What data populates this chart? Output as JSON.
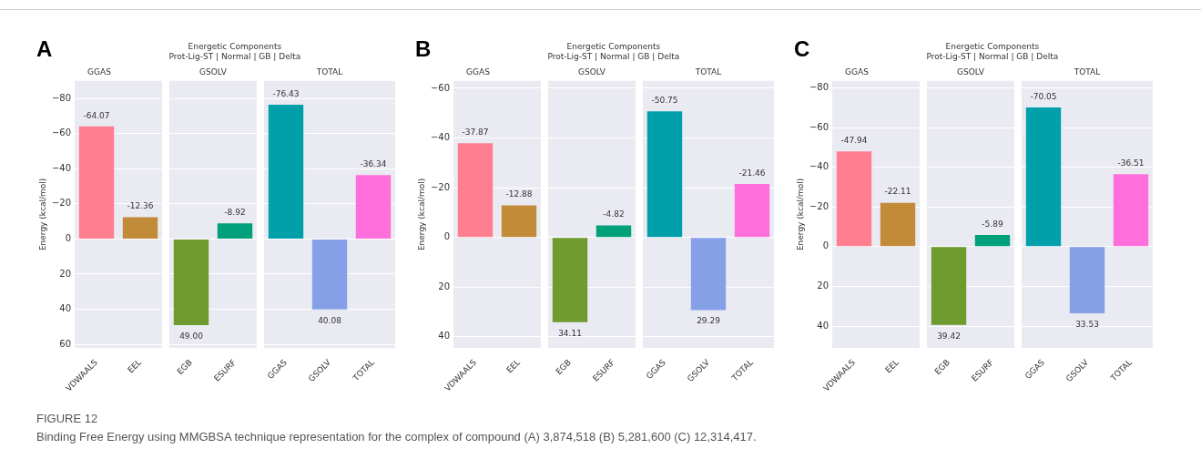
{
  "chart_data": [
    {
      "type": "bar",
      "title": "GGAS",
      "annotations": [
        "A",
        "FIGURE 12",
        "Binding Free Energy using MMGBSA technique representation for the complex of compound (A) 3,874,518 (B) 5,281,600 (C) 12,314,417."
      ],
      "ylabel": "Energy (kcal/mol)",
      "categories": [
        "VDWAALS",
        "EEL"
      ],
      "values": [
        -64.07,
        -12.36
      ],
      "value_labels": [
        "-64.07",
        "-12.36"
      ],
      "colors": [
        "#ff7f91",
        "#c28b39"
      ],
      "ylim": [
        62,
        -90
      ],
      "yticks": [
        -80,
        -60,
        -40,
        -20,
        0,
        20,
        40,
        60
      ],
      "grid": "y"
    },
    {
      "type": "bar",
      "title": "GSOLV",
      "subtitle": "Energetic Components\nProt-Lig-ST | Normal | GB | Delta",
      "categories": [
        "EGB",
        "ESURF"
      ],
      "values": [
        49.0,
        -8.92
      ],
      "value_labels": [
        "49.00",
        "-8.92"
      ],
      "colors": [
        "#6f9a2e",
        "#00a07a"
      ],
      "ylim": [
        62,
        -90
      ],
      "yticks": [
        -80,
        -60,
        -40,
        -20,
        0,
        20,
        40,
        60
      ],
      "grid": "y",
      "tick_labels": "x"
    },
    {
      "type": "bar",
      "title": "TOTAL",
      "categories": [
        "GGAS",
        "GSOLV",
        "TOTAL"
      ],
      "values": [
        -76.43,
        40.08,
        -36.34
      ],
      "value_labels": [
        "-76.43",
        "40.08",
        "-36.34"
      ],
      "colors": [
        "#00a0ab",
        "#86a0e8",
        "#ff6fdc"
      ],
      "ylim": [
        62,
        -90
      ],
      "yticks": [
        -80,
        -60,
        -40,
        -20,
        0,
        20,
        40,
        60
      ],
      "grid": "y",
      "tick_labels": "x"
    },
    {
      "type": "bar",
      "title": "GGAS",
      "annotations": [
        "B"
      ],
      "ylabel": "Energy (kcal/mol)",
      "categories": [
        "VDWAALS",
        "EEL"
      ],
      "values": [
        -37.87,
        -12.88
      ],
      "value_labels": [
        "-37.87",
        "-12.88"
      ],
      "colors": [
        "#ff7f91",
        "#c28b39"
      ],
      "ylim": [
        44.5,
        -63
      ],
      "yticks": [
        -60,
        -40,
        -20,
        0,
        20,
        40
      ],
      "grid": "y"
    },
    {
      "type": "bar",
      "title": "GSOLV",
      "subtitle": "Energetic Components\nProt-Lig-ST | Normal | GB | Delta",
      "categories": [
        "EGB",
        "ESURF"
      ],
      "values": [
        34.11,
        -4.82
      ],
      "value_labels": [
        "34.11",
        "-4.82"
      ],
      "colors": [
        "#6f9a2e",
        "#00a07a"
      ],
      "ylim": [
        44.5,
        -63
      ],
      "yticks": [
        -60,
        -40,
        -20,
        0,
        20,
        40
      ],
      "grid": "y",
      "tick_labels": "x"
    },
    {
      "type": "bar",
      "title": "TOTAL",
      "categories": [
        "GGAS",
        "GSOLV",
        "TOTAL"
      ],
      "values": [
        -50.75,
        29.29,
        -21.46
      ],
      "value_labels": [
        "-50.75",
        "29.29",
        "-21.46"
      ],
      "colors": [
        "#00a0ab",
        "#86a0e8",
        "#ff6fdc"
      ],
      "ylim": [
        44.5,
        -63
      ],
      "yticks": [
        -60,
        -40,
        -20,
        0,
        20,
        40
      ],
      "grid": "y",
      "tick_labels": "x"
    },
    {
      "type": "bar",
      "title": "GGAS",
      "annotations": [
        "C"
      ],
      "ylabel": "Energy (kcal/mol)",
      "categories": [
        "VDWAALS",
        "EEL"
      ],
      "values": [
        -47.94,
        -22.11
      ],
      "value_labels": [
        "-47.94",
        "-22.11"
      ],
      "colors": [
        "#ff7f91",
        "#c28b39"
      ],
      "ylim": [
        51,
        -83.5
      ],
      "yticks": [
        -80,
        -60,
        -40,
        -20,
        0,
        20,
        40
      ],
      "grid": "y"
    },
    {
      "type": "bar",
      "title": "GSOLV",
      "subtitle": "Energetic Components\nProt-Lig-ST | Normal | GB | Delta",
      "categories": [
        "EGB",
        "ESURF"
      ],
      "values": [
        39.42,
        -5.89
      ],
      "value_labels": [
        "39.42",
        "-5.89"
      ],
      "colors": [
        "#6f9a2e",
        "#00a07a"
      ],
      "ylim": [
        51,
        -83.5
      ],
      "yticks": [
        -80,
        -60,
        -40,
        -20,
        0,
        20,
        40
      ],
      "grid": "y",
      "tick_labels": "x"
    },
    {
      "type": "bar",
      "title": "TOTAL",
      "categories": [
        "GGAS",
        "GSOLV",
        "TOTAL"
      ],
      "values": [
        -70.05,
        33.53,
        -36.51
      ],
      "value_labels": [
        "-70.05",
        "33.53",
        "-36.51"
      ],
      "colors": [
        "#00a0ab",
        "#86a0e8",
        "#ff6fdc"
      ],
      "ylim": [
        51,
        -83.5
      ],
      "yticks": [
        -80,
        -60,
        -40,
        -20,
        0,
        20,
        40
      ],
      "grid": "y",
      "tick_labels": "x"
    }
  ]
}
